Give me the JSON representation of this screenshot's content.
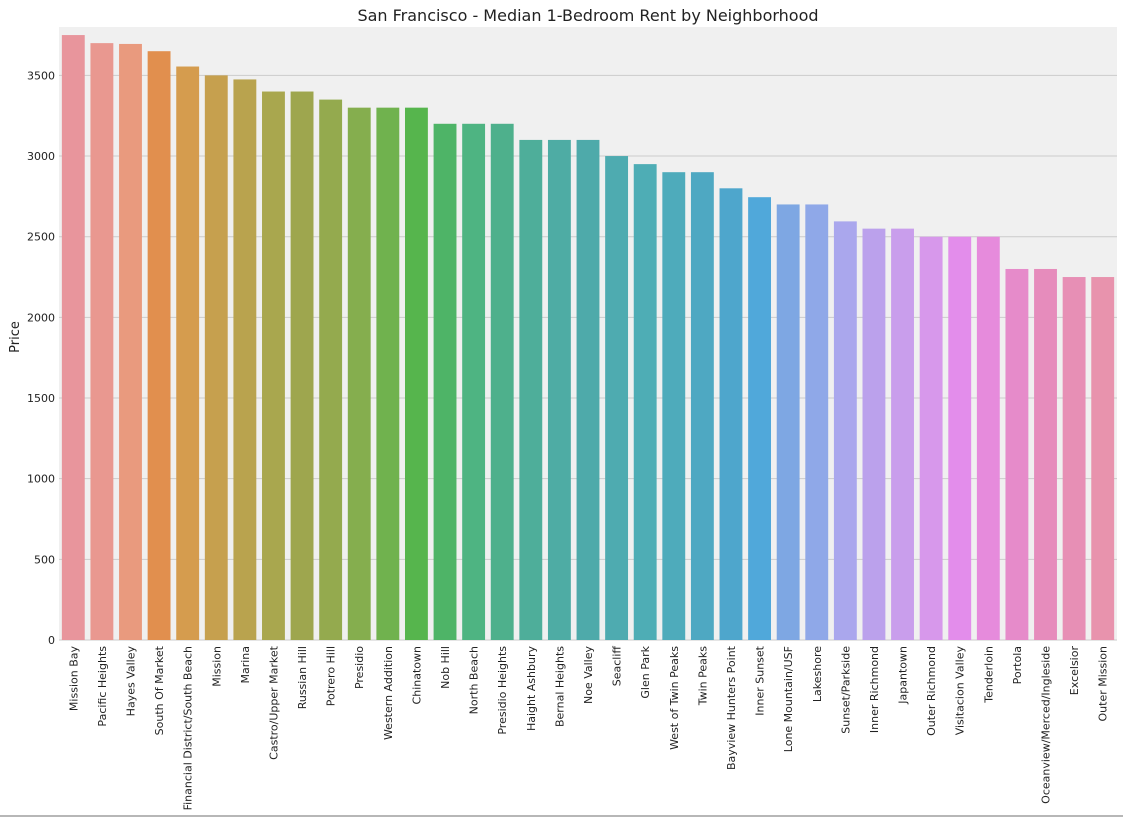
{
  "chart_data": {
    "type": "bar",
    "title": "San Francisco - Median 1-Bedroom Rent by Neighborhood",
    "xlabel": "",
    "ylabel": "Price",
    "ylim": [
      0,
      3800
    ],
    "yticks": [
      0,
      500,
      1000,
      1500,
      2000,
      2500,
      3000,
      3500
    ],
    "grid": true,
    "legend": "none",
    "background_color": "#f0f0f0",
    "grid_color": "#cbcbcb",
    "categories": [
      "Mission Bay",
      "Pacific Heights",
      "Hayes Valley",
      "South Of Market",
      "Financial District/South Beach",
      "Mission",
      "Marina",
      "Castro/Upper Market",
      "Russian Hill",
      "Potrero Hill",
      "Presidio",
      "Western Addition",
      "Chinatown",
      "Nob Hill",
      "North Beach",
      "Presidio Heights",
      "Haight Ashbury",
      "Bernal Heights",
      "Noe Valley",
      "Seacliff",
      "Glen Park",
      "West of Twin Peaks",
      "Twin Peaks",
      "Bayview Hunters Point",
      "Inner Sunset",
      "Lone Mountain/USF",
      "Lakeshore",
      "Sunset/Parkside",
      "Inner Richmond",
      "Japantown",
      "Outer Richmond",
      "Visitacion Valley",
      "Tenderloin",
      "Portola",
      "Oceanview/Merced/Ingleside",
      "Excelsior",
      "Outer Mission"
    ],
    "values": [
      3750,
      3700,
      3695,
      3650,
      3555,
      3500,
      3475,
      3400,
      3400,
      3350,
      3300,
      3300,
      3300,
      3200,
      3200,
      3200,
      3100,
      3100,
      3100,
      3000,
      2950,
      2900,
      2900,
      2800,
      2745,
      2700,
      2700,
      2595,
      2550,
      2550,
      2500,
      2500,
      2500,
      2300,
      2300,
      2250,
      2250
    ],
    "colors": [
      "#e8959c",
      "#e99890",
      "#e99a7e",
      "#e18f4e",
      "#d59c4e",
      "#c6a04e",
      "#b9a34e",
      "#a9a74e",
      "#9ea64e",
      "#94aa4e",
      "#85ae4e",
      "#70b24e",
      "#56b54d",
      "#4eb467",
      "#4eb482",
      "#4eb08c",
      "#4eae9a",
      "#4eaca4",
      "#4eaaaa",
      "#4eabb0",
      "#4eadb5",
      "#4eabbb",
      "#4ea8c2",
      "#4ea6cc",
      "#50a8da",
      "#7ea7e3",
      "#8fa8e8",
      "#aaa7ed",
      "#bba1ec",
      "#c99eec",
      "#d798eb",
      "#e38deb",
      "#e68bdc",
      "#e68bca",
      "#e68cbc",
      "#e78fb5",
      "#e893ad"
    ]
  }
}
